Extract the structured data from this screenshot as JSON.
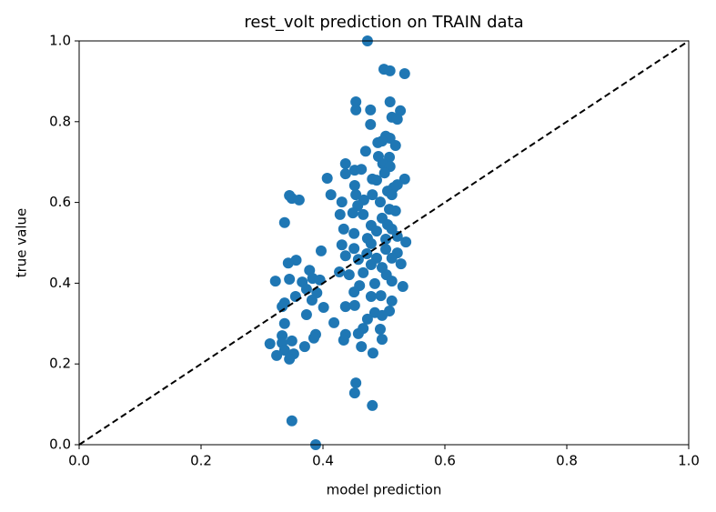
{
  "chart_data": {
    "type": "scatter",
    "title": "rest_volt prediction on TRAIN data",
    "x_label": "model prediction",
    "y_label": "true value",
    "color": "#1f77b4",
    "identity_line": true,
    "xlim": [
      0,
      1
    ],
    "ylim": [
      0,
      1
    ],
    "xticks": [
      {
        "value": 0,
        "label": "0.0"
      },
      0.2,
      0.4,
      0.6,
      0.8,
      {
        "value": 1,
        "label": "1.0"
      }
    ],
    "yticks": [
      {
        "value": 0,
        "label": "0.0"
      },
      0.2,
      0.4,
      0.6,
      0.8,
      {
        "value": 1,
        "label": "1.0"
      }
    ],
    "x": [
      0.473,
      0.5,
      0.51,
      0.534,
      0.454,
      0.51,
      0.454,
      0.478,
      0.527,
      0.513,
      0.522,
      0.478,
      0.503,
      0.51,
      0.497,
      0.519,
      0.47,
      0.491,
      0.509,
      0.49,
      0.437,
      0.452,
      0.437,
      0.463,
      0.498,
      0.51,
      0.501,
      0.407,
      0.481,
      0.488,
      0.534,
      0.522,
      0.452,
      0.516,
      0.506,
      0.413,
      0.454,
      0.481,
      0.345,
      0.349,
      0.361,
      0.467,
      0.494,
      0.513,
      0.431,
      0.457,
      0.509,
      0.519,
      0.449,
      0.428,
      0.466,
      0.337,
      0.497,
      0.434,
      0.479,
      0.506,
      0.513,
      0.488,
      0.451,
      0.522,
      0.473,
      0.503,
      0.536,
      0.431,
      0.451,
      0.479,
      0.397,
      0.503,
      0.522,
      0.472,
      0.437,
      0.488,
      0.458,
      0.513,
      0.356,
      0.343,
      0.528,
      0.479,
      0.497,
      0.378,
      0.427,
      0.466,
      0.504,
      0.443,
      0.383,
      0.345,
      0.395,
      0.366,
      0.322,
      0.513,
      0.485,
      0.46,
      0.531,
      0.373,
      0.39,
      0.451,
      0.355,
      0.495,
      0.479,
      0.382,
      0.513,
      0.337,
      0.333,
      0.401,
      0.437,
      0.452,
      0.509,
      0.485,
      0.373,
      0.497,
      0.473,
      0.418,
      0.337,
      0.466,
      0.494,
      0.437,
      0.388,
      0.333,
      0.385,
      0.458,
      0.434,
      0.497,
      0.349,
      0.333,
      0.313,
      0.37,
      0.463,
      0.337,
      0.482,
      0.352,
      0.324,
      0.345,
      0.454,
      0.452,
      0.481,
      0.349,
      0.388
    ],
    "y": [
      1.0,
      0.93,
      0.926,
      0.919,
      0.849,
      0.849,
      0.829,
      0.829,
      0.827,
      0.811,
      0.806,
      0.793,
      0.764,
      0.759,
      0.752,
      0.741,
      0.727,
      0.714,
      0.712,
      0.748,
      0.696,
      0.68,
      0.671,
      0.682,
      0.696,
      0.689,
      0.673,
      0.66,
      0.658,
      0.655,
      0.658,
      0.644,
      0.642,
      0.637,
      0.628,
      0.619,
      0.619,
      0.619,
      0.617,
      0.61,
      0.606,
      0.606,
      0.601,
      0.619,
      0.601,
      0.592,
      0.583,
      0.579,
      0.574,
      0.57,
      0.57,
      0.55,
      0.561,
      0.534,
      0.543,
      0.545,
      0.534,
      0.529,
      0.523,
      0.516,
      0.511,
      0.509,
      0.502,
      0.495,
      0.486,
      0.498,
      0.48,
      0.484,
      0.475,
      0.473,
      0.468,
      0.462,
      0.459,
      0.462,
      0.457,
      0.45,
      0.448,
      0.446,
      0.439,
      0.432,
      0.428,
      0.426,
      0.421,
      0.421,
      0.412,
      0.41,
      0.408,
      0.403,
      0.405,
      0.405,
      0.399,
      0.394,
      0.392,
      0.385,
      0.376,
      0.378,
      0.367,
      0.369,
      0.367,
      0.358,
      0.356,
      0.351,
      0.342,
      0.34,
      0.342,
      0.345,
      0.331,
      0.327,
      0.322,
      0.32,
      0.311,
      0.302,
      0.3,
      0.288,
      0.286,
      0.273,
      0.273,
      0.27,
      0.264,
      0.275,
      0.259,
      0.261,
      0.257,
      0.252,
      0.25,
      0.243,
      0.243,
      0.234,
      0.227,
      0.225,
      0.221,
      0.212,
      0.153,
      0.128,
      0.097,
      0.059,
      0.0
    ]
  }
}
